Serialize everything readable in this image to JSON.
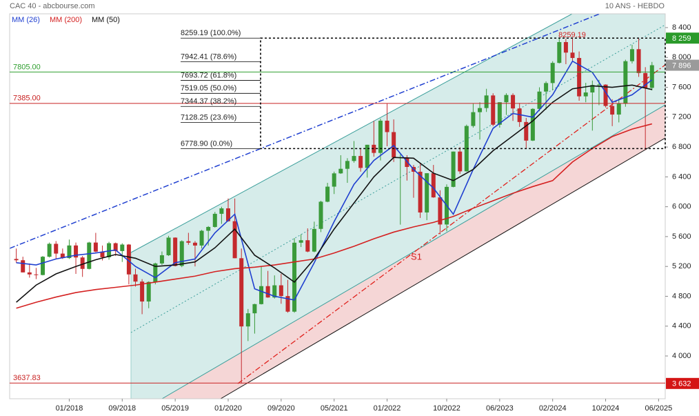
{
  "header": {
    "title": "CAC 40 - abcbourse.com",
    "period": "10 ANS - HEBDO"
  },
  "chart_data": {
    "type": "candlestick",
    "up_color": "#3a9a3a",
    "down_color": "#c42a2e",
    "x": [
      "2017-05",
      "2017-06",
      "2017-07",
      "2017-08",
      "2017-09",
      "2017-10",
      "2017-11",
      "2017-12",
      "2018-01",
      "2018-02",
      "2018-03",
      "2018-04",
      "2018-05",
      "2018-06",
      "2018-07",
      "2018-08",
      "2018-09",
      "2018-10",
      "2018-11",
      "2018-12",
      "2019-01",
      "2019-02",
      "2019-03",
      "2019-04",
      "2019-05",
      "2019-06",
      "2019-07",
      "2019-08",
      "2019-09",
      "2019-10",
      "2019-11",
      "2019-12",
      "2020-01",
      "2020-02",
      "2020-03",
      "2020-04",
      "2020-05",
      "2020-06",
      "2020-07",
      "2020-08",
      "2020-09",
      "2020-10",
      "2020-11",
      "2020-12",
      "2021-01",
      "2021-02",
      "2021-03",
      "2021-04",
      "2021-05",
      "2021-06",
      "2021-07",
      "2021-08",
      "2021-09",
      "2021-10",
      "2021-11",
      "2021-12",
      "2022-01",
      "2022-02",
      "2022-03",
      "2022-04",
      "2022-05",
      "2022-06",
      "2022-07",
      "2022-08",
      "2022-09",
      "2022-10",
      "2022-11",
      "2022-12",
      "2023-01",
      "2023-02",
      "2023-03",
      "2023-04",
      "2023-05",
      "2023-06",
      "2023-07",
      "2023-08",
      "2023-09",
      "2023-10",
      "2023-11",
      "2023-12",
      "2024-01",
      "2024-02",
      "2024-03",
      "2024-04",
      "2024-05",
      "2024-06",
      "2024-07",
      "2024-08",
      "2024-09",
      "2024-10",
      "2024-11",
      "2024-12",
      "2025-01",
      "2025-02",
      "2025-03",
      "2025-04",
      "2025-05"
    ],
    "ohlc": [
      [
        5300,
        5440,
        5250,
        5283
      ],
      [
        5283,
        5330,
        5120,
        5120
      ],
      [
        5120,
        5240,
        5050,
        5093
      ],
      [
        5093,
        5180,
        5030,
        5085
      ],
      [
        5085,
        5340,
        5080,
        5330
      ],
      [
        5330,
        5520,
        5320,
        5503
      ],
      [
        5503,
        5540,
        5300,
        5372
      ],
      [
        5372,
        5440,
        5300,
        5312
      ],
      [
        5312,
        5560,
        5300,
        5481
      ],
      [
        5481,
        5520,
        5100,
        5320
      ],
      [
        5320,
        5340,
        5060,
        5167
      ],
      [
        5167,
        5530,
        5160,
        5520
      ],
      [
        5520,
        5650,
        5390,
        5398
      ],
      [
        5398,
        5480,
        5280,
        5323
      ],
      [
        5323,
        5530,
        5290,
        5511
      ],
      [
        5511,
        5520,
        5340,
        5406
      ],
      [
        5406,
        5510,
        5260,
        5493
      ],
      [
        5493,
        5500,
        4960,
        5093
      ],
      [
        5093,
        5170,
        4930,
        4997
      ],
      [
        4997,
        5030,
        4560,
        4730
      ],
      [
        4730,
        5000,
        4640,
        4992
      ],
      [
        4992,
        5250,
        4960,
        5240
      ],
      [
        5240,
        5400,
        5220,
        5350
      ],
      [
        5350,
        5610,
        5340,
        5586
      ],
      [
        5586,
        5590,
        5200,
        5207
      ],
      [
        5207,
        5550,
        5190,
        5538
      ],
      [
        5538,
        5650,
        5490,
        5518
      ],
      [
        5518,
        5540,
        5200,
        5480
      ],
      [
        5480,
        5690,
        5440,
        5678
      ],
      [
        5678,
        5740,
        5480,
        5729
      ],
      [
        5729,
        5930,
        5720,
        5905
      ],
      [
        5905,
        6000,
        5770,
        5978
      ],
      [
        5978,
        6110,
        5800,
        5806
      ],
      [
        5806,
        6110,
        5310,
        5310
      ],
      [
        5310,
        5440,
        3632,
        4396
      ],
      [
        4396,
        4630,
        4200,
        4572
      ],
      [
        4572,
        4700,
        4300,
        4695
      ],
      [
        4695,
        5200,
        4690,
        4936
      ],
      [
        4936,
        5140,
        4780,
        4784
      ],
      [
        4784,
        5080,
        4770,
        4947
      ],
      [
        4947,
        5100,
        4700,
        4803
      ],
      [
        4803,
        5020,
        4580,
        4594
      ],
      [
        4594,
        5580,
        4580,
        5518
      ],
      [
        5518,
        5630,
        5460,
        5551
      ],
      [
        5551,
        5710,
        5390,
        5399
      ],
      [
        5399,
        5800,
        5390,
        5703
      ],
      [
        5703,
        6080,
        5660,
        6067
      ],
      [
        6067,
        6320,
        6060,
        6269
      ],
      [
        6269,
        6470,
        6170,
        6447
      ],
      [
        6447,
        6690,
        6440,
        6508
      ],
      [
        6508,
        6650,
        6320,
        6613
      ],
      [
        6613,
        6880,
        6590,
        6680
      ],
      [
        6680,
        6780,
        6470,
        6520
      ],
      [
        6520,
        6830,
        6390,
        6830
      ],
      [
        6830,
        7150,
        6670,
        6721
      ],
      [
        6721,
        7180,
        6620,
        7153
      ],
      [
        7153,
        7380,
        6810,
        7000
      ],
      [
        7000,
        7170,
        6600,
        6659
      ],
      [
        6659,
        6700,
        5760,
        6660
      ],
      [
        6660,
        6690,
        6350,
        6533
      ],
      [
        6533,
        6560,
        6120,
        6469
      ],
      [
        6469,
        6590,
        5850,
        5923
      ],
      [
        5923,
        6450,
        5820,
        6449
      ],
      [
        6449,
        6560,
        6120,
        6125
      ],
      [
        6125,
        6220,
        5630,
        5762
      ],
      [
        5762,
        6300,
        5670,
        6266
      ],
      [
        6266,
        6740,
        6260,
        6739
      ],
      [
        6739,
        6800,
        6440,
        6474
      ],
      [
        6474,
        7100,
        6470,
        7082
      ],
      [
        7082,
        7380,
        7060,
        7267
      ],
      [
        7267,
        7400,
        6900,
        7322
      ],
      [
        7322,
        7580,
        7270,
        7491
      ],
      [
        7491,
        7520,
        7080,
        7099
      ],
      [
        7099,
        7400,
        7060,
        7400
      ],
      [
        7400,
        7520,
        7230,
        7497
      ],
      [
        7497,
        7520,
        7150,
        7317
      ],
      [
        7317,
        7390,
        7070,
        7135
      ],
      [
        7135,
        7190,
        6780,
        6886
      ],
      [
        6886,
        7320,
        6880,
        7311
      ],
      [
        7311,
        7600,
        7280,
        7543
      ],
      [
        7543,
        7680,
        7300,
        7657
      ],
      [
        7657,
        7950,
        7560,
        7927
      ],
      [
        7927,
        8260,
        7920,
        8206
      ],
      [
        8206,
        8250,
        7910,
        8065
      ],
      [
        8065,
        8259,
        7950,
        7993
      ],
      [
        7993,
        8080,
        7420,
        7479
      ],
      [
        7479,
        7660,
        7400,
        7531
      ],
      [
        7531,
        7690,
        7020,
        7631
      ],
      [
        7631,
        7700,
        7360,
        7636
      ],
      [
        7636,
        7640,
        7330,
        7350
      ],
      [
        7350,
        7440,
        7080,
        7235
      ],
      [
        7235,
        7450,
        7130,
        7381
      ],
      [
        7381,
        7970,
        7340,
        7950
      ],
      [
        7950,
        8170,
        7920,
        8111
      ],
      [
        8111,
        8260,
        7740,
        7791
      ],
      [
        7791,
        7870,
        6760,
        7593
      ],
      [
        7593,
        7940,
        7560,
        7896
      ]
    ],
    "ma_x": [
      "2017-05",
      "2017-08",
      "2017-11",
      "2018-02",
      "2018-05",
      "2018-08",
      "2018-11",
      "2019-02",
      "2019-05",
      "2019-08",
      "2019-11",
      "2020-02",
      "2020-05",
      "2020-08",
      "2020-11",
      "2021-02",
      "2021-05",
      "2021-08",
      "2021-11",
      "2022-02",
      "2022-05",
      "2022-08",
      "2022-11",
      "2023-02",
      "2023-05",
      "2023-08",
      "2023-11",
      "2024-02",
      "2024-05",
      "2024-08",
      "2024-11",
      "2025-02",
      "2025-05"
    ],
    "ma": [
      {
        "name": "MM (26)",
        "color": "#1f3fd0",
        "values": [
          5250,
          5220,
          5300,
          5350,
          5380,
          5420,
          5200,
          5050,
          5250,
          5300,
          5650,
          5900,
          4900,
          4800,
          4750,
          5250,
          5800,
          6300,
          6620,
          6820,
          6500,
          6250,
          5900,
          6500,
          7050,
          7250,
          7200,
          7500,
          7950,
          7800,
          7400,
          7500,
          7700
        ]
      },
      {
        "name": "MM (200)",
        "color": "#d42020",
        "values": [
          4640,
          4720,
          4790,
          4850,
          4890,
          4920,
          4950,
          4990,
          5030,
          5070,
          5130,
          5170,
          5190,
          5220,
          5260,
          5300,
          5380,
          5470,
          5570,
          5660,
          5730,
          5790,
          5870,
          5980,
          6080,
          6180,
          6270,
          6350,
          6600,
          6780,
          6940,
          7040,
          7110
        ]
      },
      {
        "name": "MM (50)",
        "color": "#111111",
        "values": [
          4720,
          4950,
          5100,
          5200,
          5290,
          5360,
          5310,
          5200,
          5220,
          5260,
          5450,
          5700,
          5350,
          5180,
          4990,
          5300,
          5700,
          6050,
          6400,
          6660,
          6650,
          6450,
          6350,
          6500,
          6750,
          6950,
          7150,
          7400,
          7580,
          7620,
          7600,
          7630,
          7570
        ]
      }
    ],
    "xlim": [
      "2017-04",
      "2025-07"
    ],
    "xticks": [
      {
        "value": "2018-01",
        "label": "01/2018"
      },
      {
        "value": "2018-09",
        "label": "09/2018"
      },
      {
        "value": "2019-05",
        "label": "05/2019"
      },
      {
        "value": "2020-01",
        "label": "01/2020"
      },
      {
        "value": "2020-09",
        "label": "09/2020"
      },
      {
        "value": "2021-05",
        "label": "05/2021"
      },
      {
        "value": "2022-01",
        "label": "01/2022"
      },
      {
        "value": "2022-10",
        "label": "10/2022"
      },
      {
        "value": "2023-06",
        "label": "06/2023"
      },
      {
        "value": "2024-02",
        "label": "02/2024"
      },
      {
        "value": "2024-10",
        "label": "10/2024"
      },
      {
        "value": "2025-06",
        "label": "06/2025"
      }
    ],
    "ylim": [
      3427,
      8585
    ],
    "yticks": [
      {
        "value": 4000,
        "label": "4 000"
      },
      {
        "value": 4400,
        "label": "4 400"
      },
      {
        "value": 4800,
        "label": "4 800"
      },
      {
        "value": 5200,
        "label": "5 200"
      },
      {
        "value": 5600,
        "label": "5 600"
      },
      {
        "value": 6000,
        "label": "6 000"
      },
      {
        "value": 6400,
        "label": "6 400"
      },
      {
        "value": 6800,
        "label": "6 800"
      },
      {
        "value": 7200,
        "label": "7 200"
      },
      {
        "value": 7600,
        "label": "7 600"
      },
      {
        "value": 8000,
        "label": "8 000"
      },
      {
        "value": 8400,
        "label": "8 400"
      }
    ],
    "hlines": [
      {
        "value": 7805,
        "label": "7805.00",
        "color": "#2e9e2e"
      },
      {
        "value": 7385,
        "label": "7385.00",
        "color": "#c82020"
      },
      {
        "value": 3637.83,
        "label": "3637.83",
        "color": "#c82020"
      }
    ],
    "badges": [
      {
        "value": 8259,
        "label": "8 259",
        "color": "#2a9a2a"
      },
      {
        "value": 7896,
        "label": "7 896",
        "color": "#9a9a9a"
      },
      {
        "value": 3632,
        "label": "3 632",
        "color": "#d41515"
      }
    ],
    "fib": [
      {
        "value": 8259.19,
        "label": "8259.19 (100.0%)"
      },
      {
        "value": 7942.41,
        "label": "7942.41 (78.6%)"
      },
      {
        "value": 7693.72,
        "label": "7693.72 (61.8%)"
      },
      {
        "value": 7519.05,
        "label": "7519.05 (50.0%)"
      },
      {
        "value": 7344.37,
        "label": "7344.37 (38.2%)"
      },
      {
        "value": 7128.25,
        "label": "7128.25 (23.6%)"
      },
      {
        "value": 6778.9,
        "label": "6778.90 (0.0%)"
      }
    ],
    "annotations": [
      "8259.19",
      "S1"
    ]
  }
}
